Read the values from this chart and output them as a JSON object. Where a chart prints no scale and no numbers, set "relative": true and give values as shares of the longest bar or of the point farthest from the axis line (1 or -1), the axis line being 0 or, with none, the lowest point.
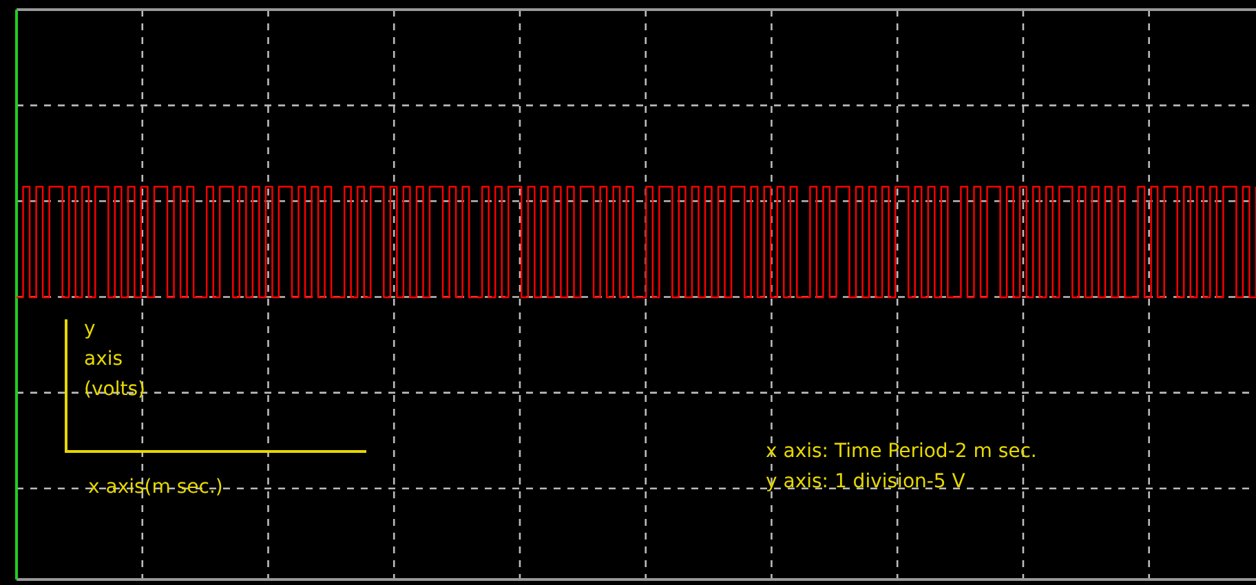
{
  "chart_data": {
    "type": "step",
    "relative": true,
    "grid": true,
    "legend": false,
    "annotations": [
      "y\naxis\n(volts)",
      "x axis(m sec.)",
      "x axis: Time Period-2 m sec.\ny axis: 1 division-5 V"
    ],
    "categories": [
      null,
      null,
      null,
      null,
      null,
      null,
      null,
      null,
      null,
      null,
      null,
      null,
      null,
      null,
      null,
      null,
      null,
      null,
      null,
      null,
      null,
      null,
      null,
      null,
      null,
      null,
      null,
      null,
      null,
      null,
      null,
      null,
      null,
      null,
      null,
      null,
      null,
      null,
      null,
      null,
      null,
      null,
      null,
      null,
      null,
      null,
      null,
      null,
      null,
      null,
      null,
      null,
      null,
      null,
      null,
      null,
      null,
      null,
      null,
      null,
      null,
      null,
      null,
      null,
      null,
      null,
      null,
      null,
      null,
      null,
      null,
      null,
      null,
      null,
      null,
      null,
      null,
      null,
      null,
      null,
      null,
      null,
      null,
      null,
      null,
      null,
      null,
      null,
      null,
      null,
      null,
      null,
      null,
      null,
      null,
      null,
      null,
      null,
      null,
      null,
      null,
      null,
      null,
      null,
      null,
      null,
      null,
      null,
      null,
      null,
      null,
      null,
      null,
      null,
      null,
      null,
      null,
      null,
      null,
      null,
      null,
      null,
      null,
      null,
      null,
      null,
      null,
      null,
      null,
      null,
      null,
      null,
      null,
      null,
      null,
      null,
      null,
      null,
      null,
      null,
      null,
      null,
      null,
      null,
      null,
      null,
      null,
      null,
      null,
      null,
      null,
      null,
      null,
      null,
      null,
      null,
      null,
      null,
      null,
      null,
      null,
      null,
      null,
      null,
      null,
      null,
      null,
      null,
      null,
      null,
      null,
      null,
      null,
      null,
      null,
      null,
      null,
      null,
      null,
      null,
      null,
      null,
      null,
      null,
      null,
      null,
      null,
      null,
      null,
      null
    ],
    "series": [
      {
        "color": "#ff0000",
        "values": [
          0,
          1,
          0,
          1,
          0,
          1,
          1,
          0,
          1,
          0,
          1,
          0,
          1,
          1,
          0,
          1,
          0,
          1,
          0,
          1,
          0,
          1,
          1,
          0,
          1,
          0,
          1,
          0,
          0,
          1,
          0,
          1,
          1,
          0,
          1,
          0,
          1,
          0,
          1,
          0,
          1,
          1,
          0,
          1,
          0,
          1,
          0,
          1,
          0,
          0,
          1,
          0,
          1,
          0,
          1,
          1,
          0,
          1,
          0,
          1,
          0,
          1,
          0,
          1,
          1,
          0,
          1,
          0,
          1,
          0,
          0,
          1,
          0,
          1,
          0,
          1,
          1,
          0,
          1,
          0,
          1,
          0,
          1,
          0,
          1,
          0,
          1,
          1,
          0,
          1,
          0,
          1,
          0,
          1,
          0,
          0,
          1,
          0,
          1,
          1,
          0,
          1,
          0,
          1,
          0,
          1,
          0,
          1,
          0,
          1,
          1,
          0,
          1,
          0,
          1,
          0,
          1,
          0,
          1,
          0,
          0,
          1,
          0,
          1,
          0,
          1,
          1,
          0,
          1,
          0,
          1,
          0,
          1,
          0,
          1,
          1,
          0,
          1,
          0,
          1,
          0,
          1,
          0,
          0,
          1,
          0,
          1,
          0,
          1,
          1,
          0,
          1,
          0,
          1,
          0,
          1,
          0,
          1,
          0,
          1,
          1,
          0,
          1,
          0,
          1,
          0,
          1,
          0,
          1,
          0,
          0,
          1,
          0,
          1,
          0,
          1,
          1,
          0,
          1,
          0,
          1,
          0,
          1,
          0,
          1,
          1,
          0,
          1,
          0,
          1
        ]
      }
    ]
  }
}
